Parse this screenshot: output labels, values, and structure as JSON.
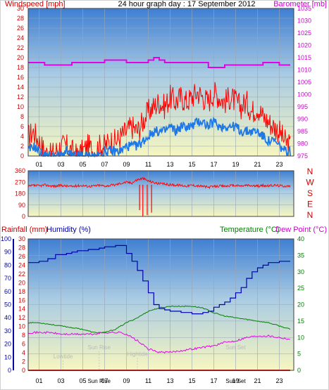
{
  "chart_data": [
    {
      "type": "line",
      "panel": "wind_baro",
      "title": "24 hour graph day : 17 September 2012",
      "left_axis_label": "Windspeed [mph]",
      "right_axis_label": "Barometer [mb]",
      "x_ticks": [
        "01",
        "03",
        "05",
        "07",
        "09",
        "11",
        "13",
        "15",
        "17",
        "19",
        "21",
        "23"
      ],
      "ylim_left": [
        0,
        30
      ],
      "yticks_left": [
        "0",
        "2",
        "4",
        "6",
        "8",
        "10",
        "12",
        "14",
        "16",
        "18",
        "20",
        "22",
        "24",
        "26",
        "28",
        "30"
      ],
      "ylim_right": [
        975,
        1035
      ],
      "yticks_right": [
        "975",
        "980",
        "985",
        "990",
        "995",
        "1000",
        "1005",
        "1010",
        "1015",
        "1020",
        "1025",
        "1030",
        "1035"
      ],
      "grid": true,
      "colors": {
        "gust": "#ff0000",
        "average": "#1e78e6",
        "barometer": "#e600e6",
        "left_axis": "#cc0000",
        "right_axis": "#cc00cc"
      },
      "series": [
        {
          "kind": "gust",
          "x": [
            0.0,
            0.5,
            1.0,
            1.5,
            2.0,
            2.5,
            3.0,
            3.5,
            4.0,
            4.5,
            5.0,
            5.5,
            6.0,
            6.5,
            7.0,
            7.5,
            8.0,
            8.5,
            9.0,
            9.5,
            10.0,
            10.5,
            11.0,
            11.5,
            12.0,
            12.5,
            13.0,
            13.5,
            14.0,
            14.5,
            15.0,
            15.5,
            16.0,
            16.5,
            17.0,
            17.5,
            18.0,
            18.5,
            19.0,
            19.5,
            20.0,
            20.5,
            21.0,
            21.5,
            22.0,
            22.5,
            23.0,
            23.5,
            24.0
          ],
          "values": [
            4,
            5,
            3,
            1,
            0,
            1,
            2,
            2,
            1,
            0,
            1,
            2,
            1,
            2,
            2,
            3,
            3,
            4,
            5,
            6,
            5,
            7,
            9,
            10,
            11,
            10,
            12,
            11,
            12,
            11,
            12,
            13,
            12,
            11,
            13,
            12,
            11,
            12,
            11,
            10,
            11,
            9,
            10,
            8,
            7,
            6,
            5,
            3,
            2
          ]
        },
        {
          "kind": "average",
          "x": [
            0.0,
            0.5,
            1.0,
            1.5,
            2.0,
            2.5,
            3.0,
            3.5,
            4.0,
            4.5,
            5.0,
            5.5,
            6.0,
            6.5,
            7.0,
            7.5,
            8.0,
            8.5,
            9.0,
            9.5,
            10.0,
            10.5,
            11.0,
            11.5,
            12.0,
            12.5,
            13.0,
            13.5,
            14.0,
            14.5,
            15.0,
            15.5,
            16.0,
            16.5,
            17.0,
            17.5,
            18.0,
            18.5,
            19.0,
            19.5,
            20.0,
            20.5,
            21.0,
            21.5,
            22.0,
            22.5,
            23.0,
            23.5,
            24.0
          ],
          "values": [
            1,
            2,
            1,
            0,
            0,
            0,
            0,
            1,
            0,
            0,
            0,
            0,
            0,
            0,
            1,
            1,
            1,
            1,
            2,
            2,
            2,
            3,
            4,
            5,
            5,
            5,
            6,
            5,
            6,
            6,
            6,
            7,
            7,
            6,
            7,
            6,
            6,
            6,
            6,
            5,
            5,
            5,
            5,
            4,
            3,
            3,
            2,
            1,
            1
          ]
        },
        {
          "kind": "barometer",
          "x": [
            0.0,
            1.0,
            1.5,
            4.0,
            6.5,
            7.0,
            8.5,
            9.0,
            10.5,
            11.0,
            11.5,
            12.0,
            12.5,
            15.0,
            16.5,
            17.5,
            18.0,
            19.0,
            21.0,
            21.5,
            22.5,
            23.0,
            23.5,
            24.0
          ],
          "values": [
            1013,
            1013,
            1012,
            1013,
            1013,
            1014,
            1014,
            1013,
            1013,
            1014,
            1015,
            1014,
            1013,
            1013,
            1011,
            1011,
            1012,
            1012,
            1012,
            1013,
            1013,
            1012,
            1012,
            1012
          ]
        }
      ]
    },
    {
      "type": "line",
      "panel": "direction",
      "ylim": [
        0,
        360
      ],
      "yticks": [
        "0",
        "90",
        "180",
        "270",
        "360"
      ],
      "compass_labels": [
        "N",
        "W",
        "S",
        "E",
        "N"
      ],
      "x_ticks": [
        "01",
        "03",
        "05",
        "07",
        "09",
        "11",
        "13",
        "15",
        "17",
        "19",
        "21",
        "23"
      ],
      "colors": {
        "direction": "#ff0000",
        "left_axis": "#cc0000",
        "compass": "#cc0000"
      },
      "series": [
        {
          "kind": "direction",
          "x": [
            0.0,
            0.5,
            1.0,
            1.5,
            2.0,
            2.5,
            3.0,
            3.5,
            4.0,
            4.5,
            5.0,
            5.5,
            6.0,
            6.5,
            7.0,
            7.5,
            8.0,
            8.5,
            9.0,
            9.5,
            10.0,
            10.5,
            11.0,
            11.5,
            12.0,
            12.5,
            13.0,
            13.5,
            14.0,
            14.5,
            15.0,
            15.5,
            16.0,
            16.5,
            17.0,
            17.5,
            18.0,
            18.5,
            19.0,
            19.5,
            20.0,
            20.5,
            21.0,
            21.5,
            22.0,
            22.5,
            23.0,
            23.5,
            24.0
          ],
          "values": [
            235,
            245,
            240,
            248,
            242,
            238,
            245,
            240,
            236,
            242,
            244,
            238,
            240,
            246,
            240,
            244,
            250,
            262,
            270,
            265,
            290,
            300,
            280,
            268,
            258,
            255,
            250,
            248,
            245,
            240,
            246,
            242,
            238,
            230,
            235,
            240,
            238,
            242,
            244,
            240,
            246,
            242,
            238,
            244,
            240,
            246,
            242,
            240,
            238
          ]
        },
        {
          "kind": "direction_dips",
          "x": [
            10.2,
            10.5,
            10.9,
            11.3
          ],
          "values": [
            50,
            0,
            10,
            30
          ]
        }
      ]
    },
    {
      "type": "line",
      "panel": "rain_hum_temp",
      "left_axis_label_1": "Rainfall (mm)",
      "left_axis_label_2": "Humidity (%)",
      "right_axis_label_1": "Temperature (°C)",
      "right_axis_label_2": "Dew Point (°C)",
      "ylim_humidity": [
        0,
        100
      ],
      "yticks_humidity": [
        "0",
        "10",
        "20",
        "30",
        "40",
        "50",
        "60",
        "70",
        "80",
        "90",
        "100"
      ],
      "ylim_rain": [
        0,
        30
      ],
      "yticks_rain": [
        "0",
        "2",
        "4",
        "6",
        "8",
        "10",
        "12",
        "14",
        "16",
        "18",
        "20",
        "22",
        "24",
        "26",
        "28",
        "30"
      ],
      "ylim_temp": [
        0,
        40
      ],
      "yticks_temp": [
        "0",
        "5",
        "10",
        "15",
        "20",
        "25",
        "30",
        "35",
        "40"
      ],
      "x_ticks": [
        "01",
        "03",
        "05",
        "07",
        "09",
        "11",
        "13",
        "15",
        "17",
        "19",
        "21",
        "23"
      ],
      "colors": {
        "humidity": "#0000aa",
        "temperature": "#008000",
        "dew_point": "#e600e6",
        "rainfall": "#ff0000",
        "humidity_axis": "#0000aa",
        "rain_axis": "#cc0000",
        "temp_axis": "#008000",
        "annotation": "#bbbbbb"
      },
      "annotations": [
        {
          "label": "Lowtide",
          "x": 3.2,
          "yfrac": 0.09
        },
        {
          "label": "Sun Rise",
          "x": 6.5,
          "yfrac": 0.16
        },
        {
          "label": "Hightide",
          "x": 10.0,
          "yfrac": 0.11
        },
        {
          "label": "Sun Set",
          "x": 19.0,
          "yfrac": 0.16
        }
      ],
      "bottom_labels": [
        "Sun Rise",
        "Sun Set"
      ],
      "series": [
        {
          "kind": "humidity",
          "x": [
            0.0,
            1.0,
            1.8,
            2.5,
            3.5,
            4.0,
            4.5,
            5.5,
            6.5,
            7.0,
            8.0,
            8.5,
            9.0,
            9.5,
            10.0,
            10.5,
            11.0,
            11.5,
            12.0,
            12.5,
            13.0,
            14.0,
            15.0,
            16.0,
            16.5,
            17.0,
            17.5,
            18.0,
            18.5,
            19.0,
            19.5,
            20.0,
            20.5,
            21.0,
            21.5,
            22.0,
            23.0,
            24.0
          ],
          "values": [
            82,
            83,
            85,
            88,
            89,
            90,
            91,
            92,
            93,
            94,
            95,
            95,
            89,
            83,
            76,
            68,
            59,
            50,
            47,
            46,
            45,
            44,
            43,
            44,
            45,
            48,
            50,
            52,
            55,
            59,
            63,
            70,
            75,
            78,
            80,
            82,
            83,
            83
          ]
        },
        {
          "kind": "temperature",
          "x": [
            0.0,
            1.0,
            2.0,
            3.0,
            4.0,
            5.0,
            6.0,
            7.0,
            8.0,
            9.0,
            10.0,
            11.0,
            12.0,
            13.0,
            14.0,
            15.0,
            16.0,
            17.0,
            18.0,
            19.0,
            20.0,
            21.0,
            22.0,
            23.0,
            24.0
          ],
          "values": [
            14.5,
            14.5,
            14,
            13.5,
            13,
            12.5,
            11.5,
            11.5,
            12.5,
            14.5,
            16,
            18,
            19,
            19.5,
            19.5,
            19.5,
            19,
            17.5,
            16.5,
            16,
            15.5,
            15,
            14.5,
            13.5,
            12.5
          ]
        },
        {
          "kind": "dew_point",
          "x": [
            0.0,
            1.0,
            2.0,
            3.0,
            4.0,
            5.0,
            6.0,
            7.0,
            8.0,
            8.5,
            9.0,
            10.0,
            11.0,
            12.0,
            13.0,
            14.0,
            15.0,
            16.0,
            17.0,
            18.0,
            19.0,
            20.0,
            21.0,
            22.0,
            23.0,
            24.0
          ],
          "values": [
            11.5,
            11.5,
            11.5,
            11,
            11,
            11,
            11,
            11.5,
            11.5,
            11.5,
            11,
            9,
            6.5,
            5.5,
            5.5,
            6,
            6.5,
            7,
            7.5,
            8.5,
            9,
            10,
            10.5,
            10.5,
            10,
            9.5
          ]
        },
        {
          "kind": "rainfall",
          "x": [
            0.0,
            24.0
          ],
          "values": [
            0,
            0
          ]
        }
      ]
    }
  ]
}
